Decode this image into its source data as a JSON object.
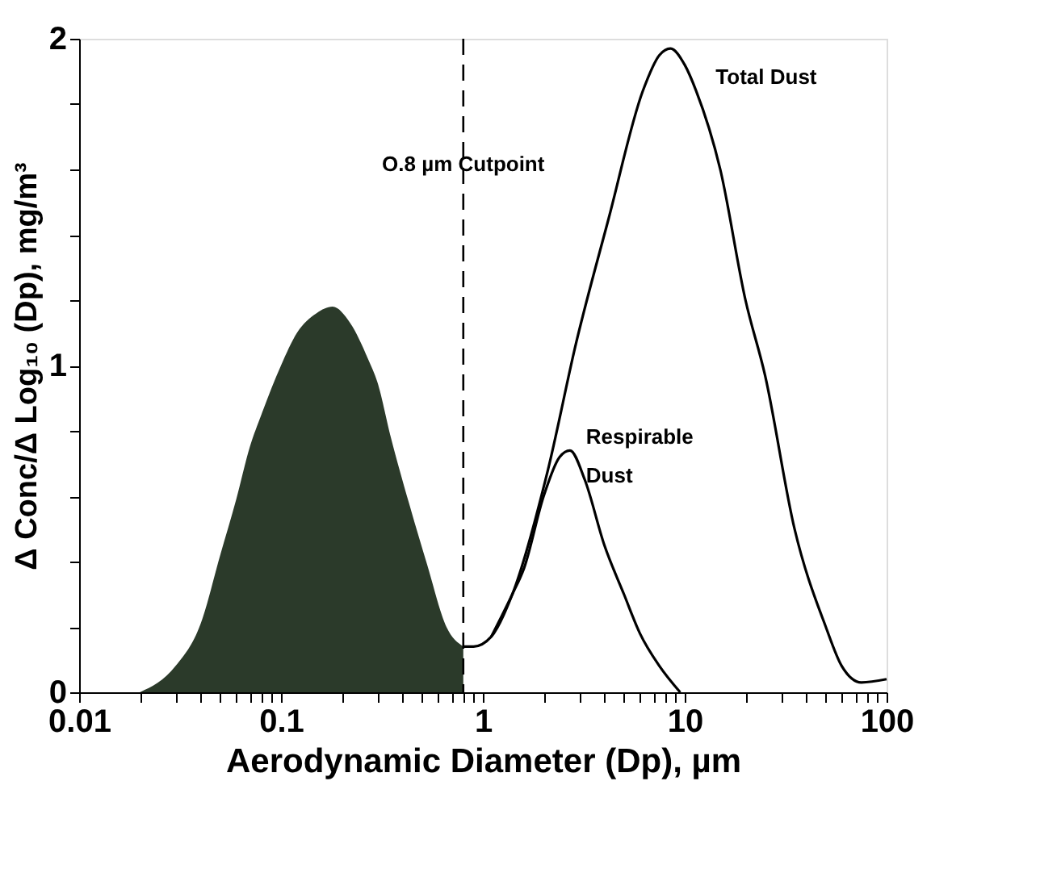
{
  "chart_data": {
    "type": "line",
    "xlabel": "Aerodynamic Diameter (Dp), µm",
    "ylabel": "Δ Conc/Δ Log₁₀ (Dp), mg/m³",
    "log": "x",
    "grid": false,
    "marker": "none",
    "line_style": "solid",
    "xlim": [
      0.01,
      100
    ],
    "ylim": [
      0,
      2
    ],
    "xticks": [
      0.01,
      {
        "value": 0.02,
        "label": null
      },
      {
        "value": 0.03,
        "label": null
      },
      {
        "value": 0.04,
        "label": null
      },
      {
        "value": 0.05,
        "label": null
      },
      {
        "value": 0.06,
        "label": null
      },
      {
        "value": 0.07,
        "label": null
      },
      {
        "value": 0.08,
        "label": null
      },
      {
        "value": 0.09,
        "label": null
      },
      0.1,
      {
        "value": 0.2,
        "label": null
      },
      {
        "value": 0.3,
        "label": null
      },
      {
        "value": 0.4,
        "label": null
      },
      {
        "value": 0.5,
        "label": null
      },
      {
        "value": 0.6,
        "label": null
      },
      {
        "value": 0.7,
        "label": null
      },
      {
        "value": 0.8,
        "label": null
      },
      {
        "value": 0.9,
        "label": null
      },
      1,
      {
        "value": 2,
        "label": null
      },
      {
        "value": 3,
        "label": null
      },
      {
        "value": 4,
        "label": null
      },
      {
        "value": 5,
        "label": null
      },
      {
        "value": 6,
        "label": null
      },
      {
        "value": 7,
        "label": null
      },
      {
        "value": 8,
        "label": null
      },
      {
        "value": 9,
        "label": null
      },
      10,
      {
        "value": 20,
        "label": null
      },
      {
        "value": 30,
        "label": null
      },
      {
        "value": 40,
        "label": null
      },
      {
        "value": 50,
        "label": null
      },
      {
        "value": 60,
        "label": null
      },
      {
        "value": 70,
        "label": null
      },
      {
        "value": 80,
        "label": null
      },
      {
        "value": 90,
        "label": null
      },
      100
    ],
    "yticks": [
      0,
      {
        "value": 0.2,
        "label": null
      },
      {
        "value": 0.4,
        "label": null
      },
      {
        "value": 0.6,
        "label": null
      },
      {
        "value": 0.8,
        "label": null
      },
      1,
      {
        "value": 1.2,
        "label": null
      },
      {
        "value": 1.4,
        "label": null
      },
      {
        "value": 1.6,
        "label": null
      },
      {
        "value": 1.8,
        "label": null
      },
      2
    ],
    "series": [
      {
        "type": "area",
        "color": "#2b3a2a",
        "x": [
          0.02,
          0.03,
          0.04,
          0.05,
          0.06,
          0.07,
          0.08,
          0.1,
          0.12,
          0.15,
          0.18,
          0.22,
          0.27,
          0.3,
          0.35,
          0.43,
          0.53,
          0.66,
          0.8
        ],
        "values": [
          0,
          0.08,
          0.21,
          0.42,
          0.59,
          0.75,
          0.85,
          1.0,
          1.1,
          1.16,
          1.18,
          1.13,
          1.02,
          0.95,
          0.78,
          0.58,
          0.39,
          0.2,
          0.14
        ]
      },
      {
        "name": "Total Dust",
        "color": "#000000",
        "x": [
          0.8,
          0.9,
          1.1,
          1.4,
          2.1,
          2.9,
          4.2,
          6.2,
          7.5,
          8.5,
          10,
          11.4,
          15,
          20,
          25,
          35,
          50,
          60,
          75,
          100
        ],
        "values": [
          0.14,
          0.14,
          0.17,
          0.3,
          0.68,
          1.07,
          1.45,
          1.84,
          1.95,
          1.97,
          1.92,
          1.84,
          1.6,
          1.2,
          0.97,
          0.5,
          0.2,
          0.08,
          0.03,
          0.04
        ]
      },
      {
        "name": "Respirable Dust",
        "color": "#000000",
        "x": [
          1.1,
          1.4,
          1.6,
          2,
          2.4,
          2.7,
          3.2,
          4,
          5,
          6,
          7.5,
          9.5
        ],
        "values": [
          0.17,
          0.3,
          0.38,
          0.6,
          0.72,
          0.74,
          0.65,
          0.45,
          0.3,
          0.18,
          0.08,
          0
        ]
      }
    ],
    "ref_lines": [
      {
        "axis": "x",
        "value": 0.8,
        "label": "O.8 µm Cutpoint",
        "color": "#000000",
        "line_style": "dashed"
      }
    ]
  }
}
